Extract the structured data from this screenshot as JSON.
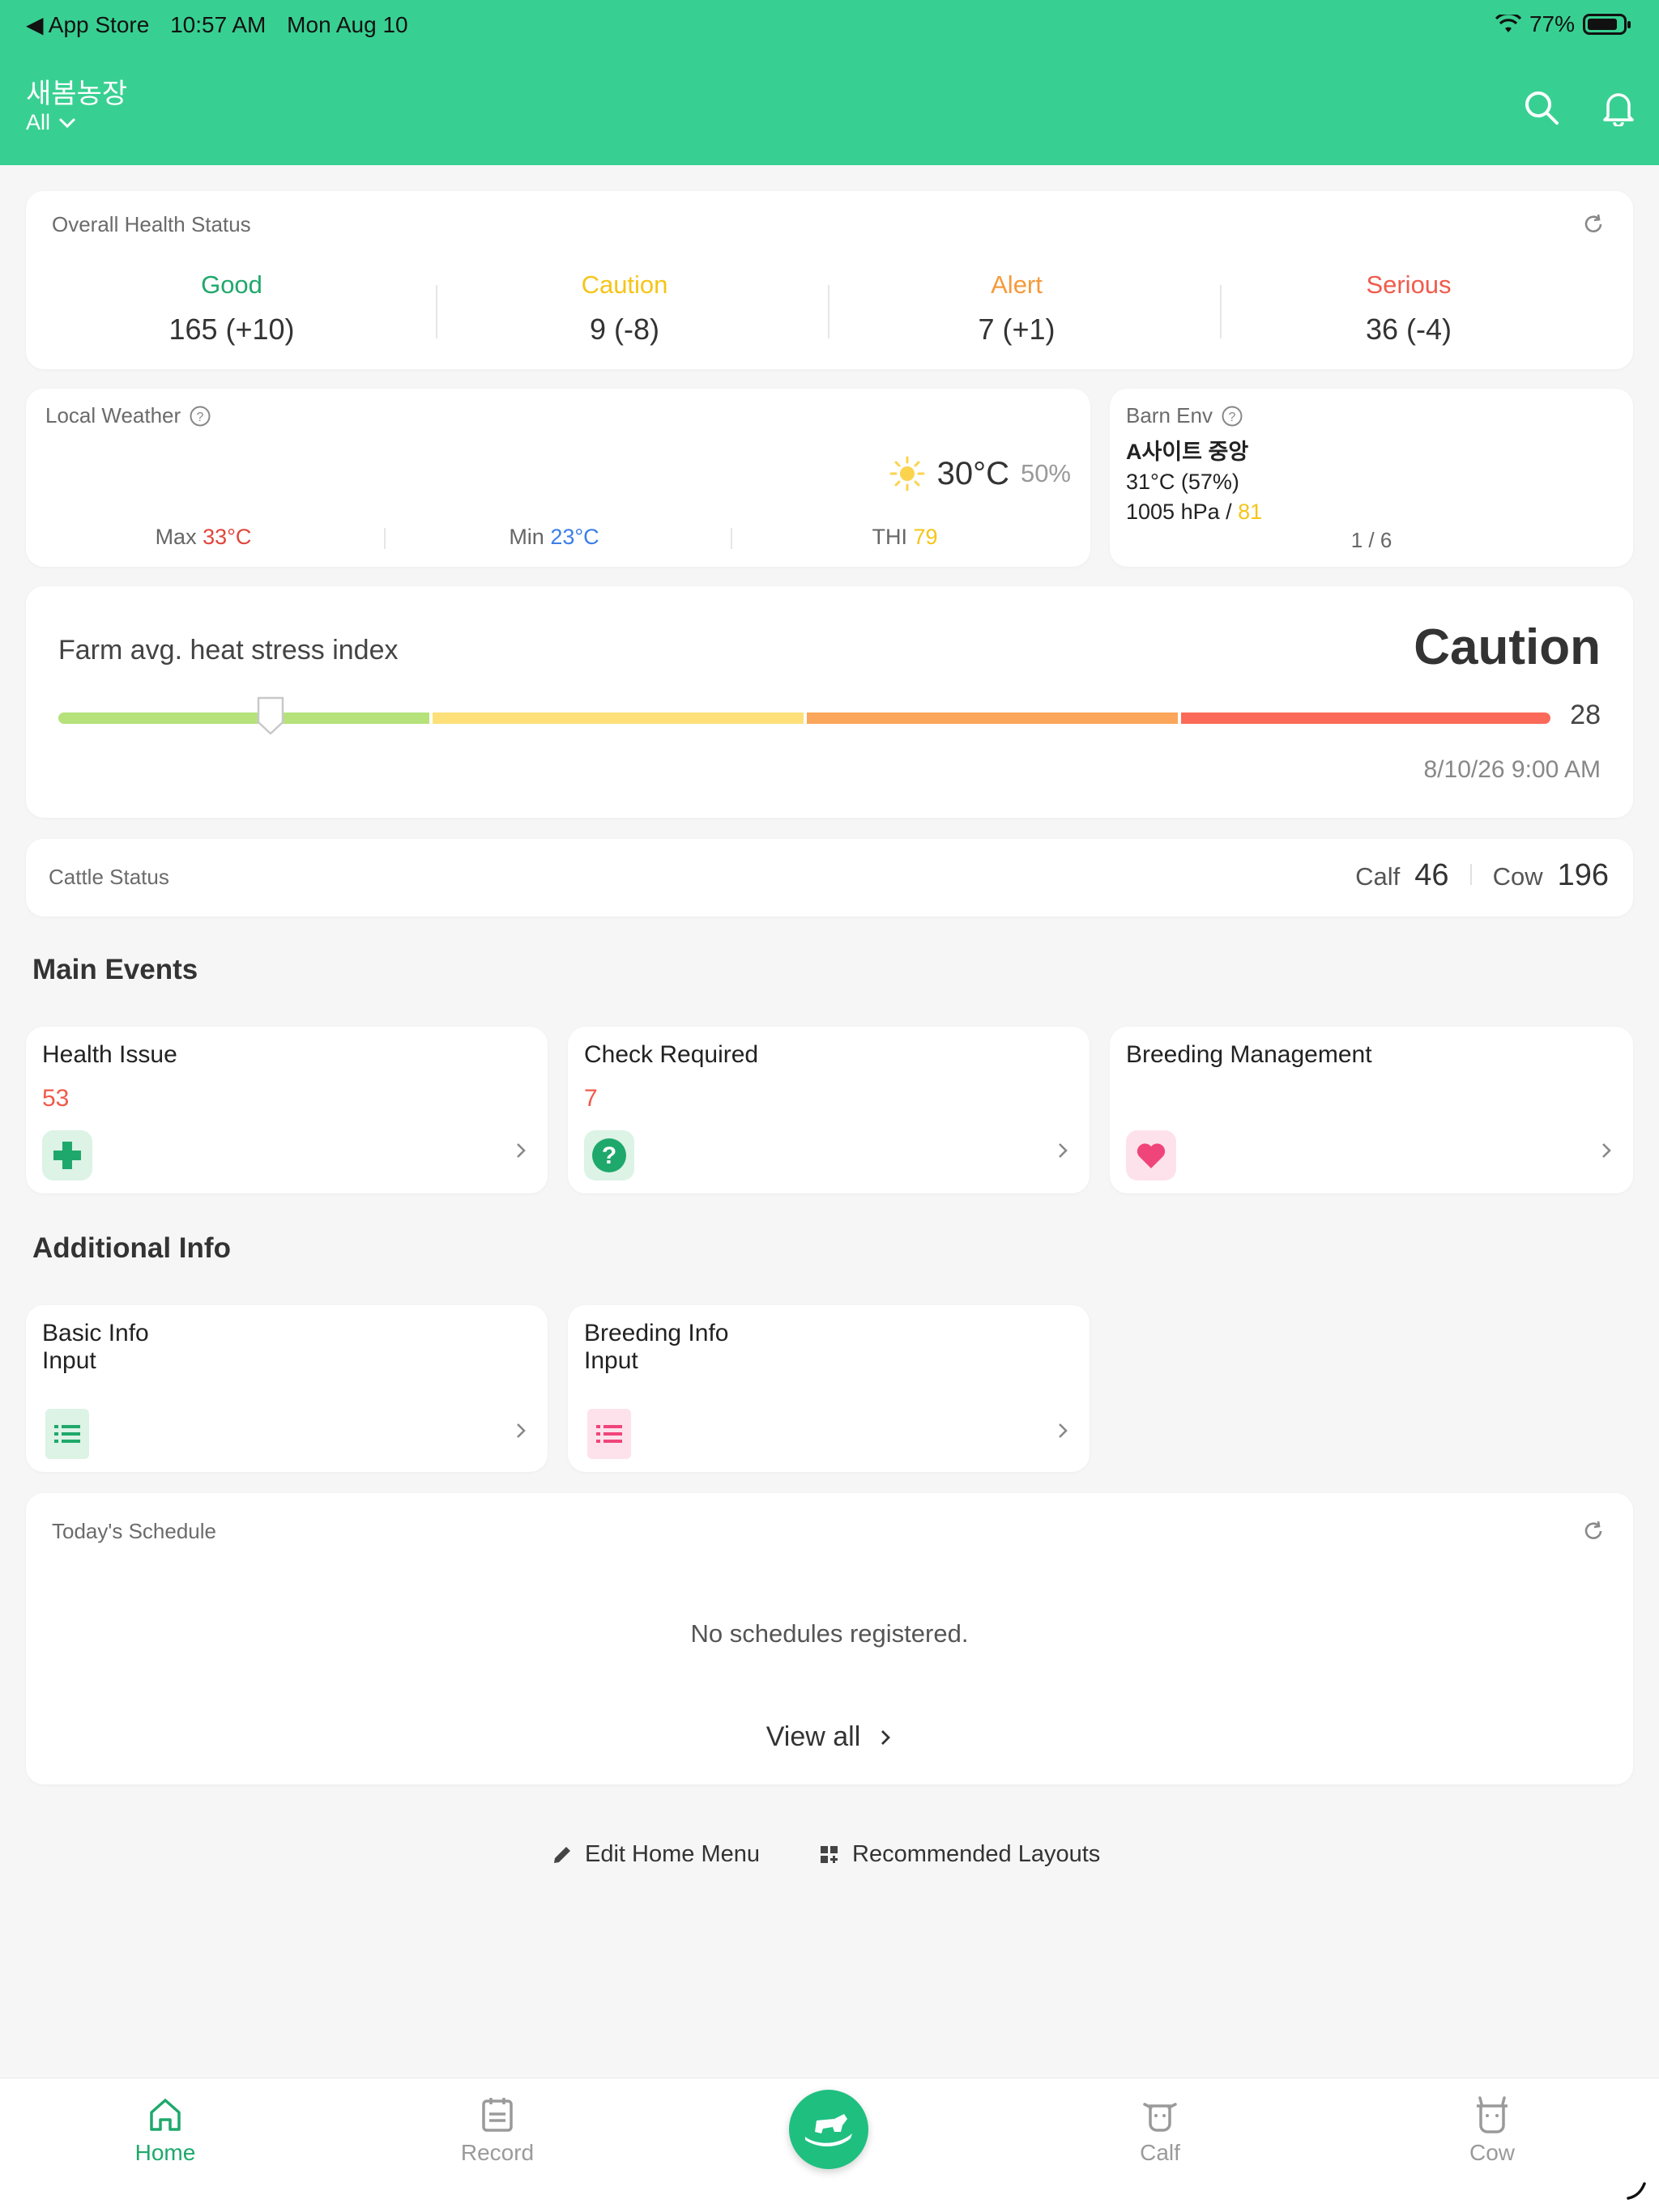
{
  "statusbar": {
    "back_app": "◀ App Store",
    "time": "10:57 AM",
    "date": "Mon Aug 10",
    "battery": "77%"
  },
  "header": {
    "farm_name": "새봄농장",
    "filter": "All"
  },
  "health_status": {
    "title": "Overall Health Status",
    "items": [
      {
        "label": "Good",
        "value": "165 (+10)",
        "color": "#1fa86b"
      },
      {
        "label": "Caution",
        "value": "9 (-8)",
        "color": "#f5c518"
      },
      {
        "label": "Alert",
        "value": "7 (+1)",
        "color": "#f59a3c"
      },
      {
        "label": "Serious",
        "value": "36 (-4)",
        "color": "#f05a4a"
      }
    ]
  },
  "weather": {
    "title": "Local Weather",
    "temp": "30°C",
    "humidity": "50%",
    "max_label": "Max",
    "max_value": "33°C",
    "min_label": "Min",
    "min_value": "23°C",
    "thi_label": "THI",
    "thi_value": "79"
  },
  "barn_env": {
    "title": "Barn Env",
    "site": "A사이트 중앙",
    "temp": "31°C (57%)",
    "pressure": "1005 hPa /",
    "thi": "81",
    "pager": "1 / 6"
  },
  "heat_stress": {
    "title": "Farm avg. heat stress index",
    "status": "Caution",
    "value": "28",
    "indicator_fraction": 0.142,
    "timestamp": "8/10/26 9:00 AM",
    "segment_colors": [
      "#b5e27a",
      "#fde07a",
      "#fba65a",
      "#fb6a58"
    ]
  },
  "cattle_status": {
    "title": "Cattle Status",
    "calf_label": "Calf",
    "calf_count": "46",
    "cow_label": "Cow",
    "cow_count": "196"
  },
  "main_events": {
    "title": "Main Events",
    "items": [
      {
        "title": "Health Issue",
        "count": "53",
        "icon": "medical-cross-icon"
      },
      {
        "title": "Check Required",
        "count": "7",
        "icon": "question-icon"
      },
      {
        "title": "Breeding Management",
        "count": "",
        "icon": "heart-icon"
      }
    ]
  },
  "additional_info": {
    "title": "Additional Info",
    "items": [
      {
        "title_line1": "Basic Info",
        "title_line2": "Input",
        "icon": "list-icon"
      },
      {
        "title_line1": "Breeding Info",
        "title_line2": "Input",
        "icon": "list-icon"
      }
    ]
  },
  "schedule": {
    "title": "Today's Schedule",
    "empty_text": "No schedules registered.",
    "view_all": "View all"
  },
  "footer_actions": {
    "edit_home_menu": "Edit Home Menu",
    "recommended_layouts": "Recommended Layouts"
  },
  "tabbar": {
    "home": "Home",
    "record": "Record",
    "calf": "Calf",
    "cow": "Cow",
    "active_color": "#1fa86b"
  }
}
